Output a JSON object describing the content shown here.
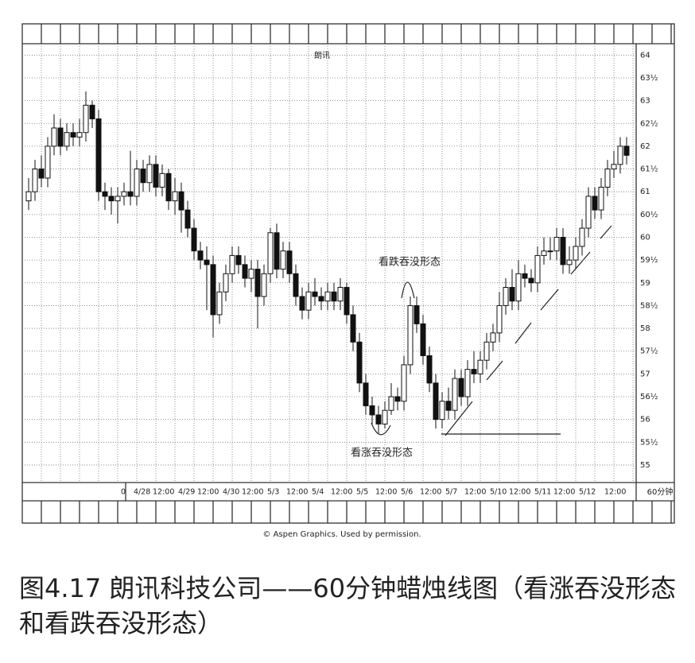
{
  "chart_data": {
    "type": "candlestick",
    "title": "朗讯",
    "categories": [
      null,
      null,
      null,
      null,
      null,
      null,
      null,
      null,
      null,
      null,
      null,
      null,
      null,
      null,
      null,
      "0",
      null,
      "4/28",
      null,
      null,
      "12:00",
      null,
      null,
      null,
      "4/29",
      null,
      null,
      "12:00",
      null,
      null,
      null,
      "4/30",
      null,
      null,
      "12:00",
      null,
      null,
      null,
      "5/3",
      null,
      null,
      "12:00",
      null,
      null,
      null,
      "5/4",
      null,
      null,
      "12:00",
      null,
      null,
      null,
      "5/5",
      null,
      null,
      "12:00",
      null,
      null,
      null,
      "5/6",
      null,
      null,
      "12:00",
      null,
      null,
      null,
      "5/7",
      null,
      null,
      "12:00",
      null,
      null,
      null,
      "5/10",
      null,
      null,
      "12:00",
      null,
      null,
      null,
      "5/11",
      null,
      null,
      "12:00",
      null,
      null,
      null,
      "5/12",
      null,
      null,
      null,
      "12:00",
      null,
      null,
      null
    ],
    "open": [
      60.8,
      61.0,
      61.5,
      61.3,
      62.0,
      62.4,
      62.0,
      62.3,
      62.2,
      62.3,
      62.9,
      62.6,
      61.0,
      60.9,
      60.8,
      60.9,
      61.0,
      60.9,
      61.5,
      61.2,
      61.6,
      61.1,
      61.4,
      60.8,
      61.0,
      60.6,
      60.2,
      59.7,
      59.5,
      59.4,
      58.3,
      58.8,
      59.2,
      59.6,
      59.4,
      59.1,
      59.3,
      58.7,
      59.2,
      60.1,
      59.3,
      59.7,
      59.2,
      58.7,
      58.4,
      58.8,
      58.7,
      58.6,
      58.8,
      58.6,
      58.9,
      58.3,
      57.7,
      56.8,
      56.3,
      56.1,
      55.9,
      56.2,
      56.5,
      56.4,
      57.2,
      58.5,
      58.1,
      57.4,
      56.8,
      56.0,
      56.4,
      56.2,
      56.9,
      56.5,
      57.1,
      57.0,
      57.3,
      57.7,
      57.9,
      58.5,
      58.9,
      58.6,
      59.2,
      59.1,
      59.0,
      59.6,
      59.7,
      59.7,
      60.0,
      59.4,
      59.5,
      59.8,
      60.2,
      60.9,
      60.6,
      61.1,
      61.5,
      61.6,
      62.0
    ],
    "high": [
      61.3,
      61.7,
      61.8,
      62.2,
      62.7,
      62.6,
      62.5,
      62.5,
      62.6,
      63.2,
      63.0,
      62.8,
      61.2,
      61.1,
      61.1,
      61.2,
      61.9,
      61.7,
      61.7,
      61.8,
      61.8,
      61.6,
      61.5,
      61.3,
      61.2,
      60.8,
      60.4,
      59.9,
      59.8,
      59.6,
      59.0,
      59.4,
      59.8,
      59.8,
      59.6,
      59.5,
      59.5,
      59.4,
      60.2,
      60.3,
      59.9,
      59.9,
      59.4,
      58.9,
      59.0,
      59.1,
      58.9,
      59.0,
      59.0,
      59.1,
      59.0,
      58.5,
      57.9,
      57.0,
      56.5,
      56.3,
      56.4,
      56.8,
      56.7,
      57.4,
      58.7,
      58.7,
      58.3,
      57.6,
      57.0,
      56.6,
      56.7,
      57.1,
      57.1,
      57.3,
      57.5,
      57.5,
      57.9,
      58.1,
      58.8,
      59.1,
      59.3,
      59.5,
      59.4,
      59.3,
      59.8,
      60.0,
      60.0,
      60.2,
      60.2,
      59.8,
      60.0,
      60.4,
      61.1,
      61.1,
      61.3,
      61.7,
      61.9,
      62.2,
      62.2
    ],
    "low": [
      60.6,
      60.8,
      61.1,
      61.1,
      61.8,
      61.8,
      61.9,
      62.0,
      62.0,
      62.1,
      62.4,
      60.8,
      60.6,
      60.5,
      60.3,
      60.7,
      60.7,
      60.7,
      61.0,
      61.0,
      60.9,
      60.9,
      60.6,
      60.5,
      60.1,
      60.0,
      59.5,
      59.3,
      58.4,
      57.8,
      58.1,
      58.6,
      59.0,
      59.2,
      58.9,
      58.8,
      58.0,
      58.5,
      59.0,
      59.1,
      59.1,
      59.0,
      58.5,
      58.2,
      58.2,
      58.5,
      58.4,
      58.4,
      58.4,
      58.4,
      58.1,
      57.5,
      56.6,
      56.1,
      55.9,
      55.7,
      55.8,
      56.1,
      56.2,
      56.2,
      57.0,
      57.9,
      57.2,
      56.6,
      55.8,
      55.8,
      56.0,
      56.0,
      56.3,
      56.3,
      56.8,
      56.8,
      57.1,
      57.5,
      57.7,
      58.3,
      58.4,
      58.4,
      58.9,
      58.8,
      58.8,
      59.4,
      59.5,
      59.5,
      59.2,
      59.2,
      59.3,
      59.6,
      60.0,
      60.4,
      60.4,
      60.9,
      61.3,
      61.4,
      61.6
    ],
    "close": [
      61.0,
      61.5,
      61.3,
      62.0,
      62.4,
      62.0,
      62.3,
      62.2,
      62.3,
      62.9,
      62.6,
      61.0,
      60.9,
      60.8,
      60.9,
      61.0,
      60.9,
      61.5,
      61.2,
      61.6,
      61.1,
      61.4,
      60.8,
      61.0,
      60.6,
      60.2,
      59.7,
      59.5,
      59.4,
      58.3,
      58.8,
      59.2,
      59.6,
      59.4,
      59.1,
      59.3,
      58.7,
      59.2,
      60.1,
      59.3,
      59.7,
      59.2,
      58.7,
      58.4,
      58.8,
      58.7,
      58.6,
      58.8,
      58.6,
      58.9,
      58.3,
      57.7,
      56.8,
      56.3,
      56.1,
      55.9,
      56.2,
      56.5,
      56.4,
      57.2,
      58.5,
      58.1,
      57.4,
      56.8,
      56.0,
      56.4,
      56.2,
      56.9,
      56.5,
      57.1,
      57.0,
      57.3,
      57.7,
      57.9,
      58.5,
      58.9,
      58.6,
      59.2,
      59.1,
      59.0,
      59.6,
      59.7,
      59.7,
      60.0,
      59.4,
      59.5,
      59.8,
      60.2,
      60.9,
      60.6,
      61.1,
      61.5,
      61.6,
      62.0,
      61.8
    ],
    "color_up": "#ffffff",
    "color_down": "#111111",
    "ylim": [
      54.65,
      64.25
    ],
    "yticks": [
      64,
      {
        "value": 63.5,
        "label": "63½"
      },
      63,
      {
        "value": 62.5,
        "label": "62½"
      },
      62,
      {
        "value": 61.5,
        "label": "61½"
      },
      61,
      {
        "value": 60.5,
        "label": "60½"
      },
      60,
      {
        "value": 59.5,
        "label": "59½"
      },
      59,
      {
        "value": 58.5,
        "label": "58½"
      },
      58,
      {
        "value": 57.5,
        "label": "57½"
      },
      57,
      {
        "value": 56.5,
        "label": "56½"
      },
      56,
      {
        "value": 55.5,
        "label": "55½"
      },
      55
    ],
    "grid": true,
    "x_label": "60分钟",
    "annotations": [
      "看跌吞没形态",
      "看涨吞没形态"
    ],
    "source": "© Aspen Graphics. Used by permission."
  },
  "caption": "图4.17 朗讯科技公司——60分钟蜡烛线图（看涨吞没形态和看跌吞没形态）"
}
